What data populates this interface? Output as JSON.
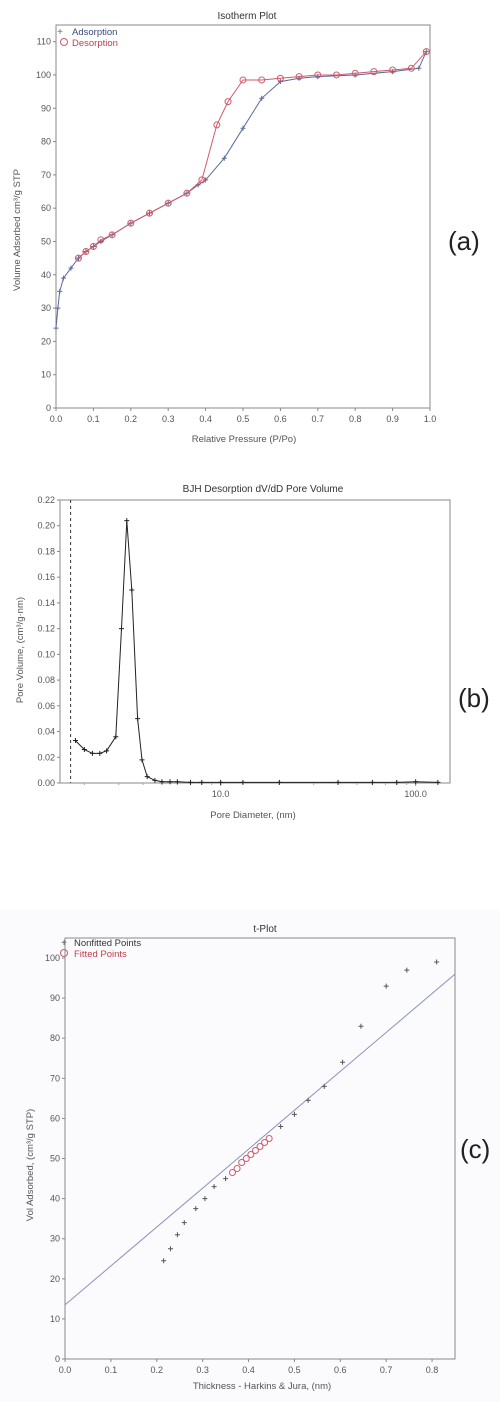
{
  "panel_labels": [
    "(a)",
    "(b)",
    "(c)"
  ],
  "chart_data": [
    {
      "type": "line",
      "title": "Isotherm Plot",
      "xlabel": "Relative Pressure (P/Po)",
      "ylabel": "Volume Adsorbed cm³/g STP",
      "xlim": [
        0,
        1.0
      ],
      "ylim": [
        0,
        115
      ],
      "xticks": [
        "0.0",
        "0.1",
        "0.2",
        "0.3",
        "0.4",
        "0.5",
        "0.6",
        "0.7",
        "0.8",
        "0.9",
        "1.0"
      ],
      "yticks": [
        "0",
        "10",
        "20",
        "30",
        "40",
        "50",
        "60",
        "70",
        "80",
        "90",
        "100",
        "110"
      ],
      "legend_position": "top-left",
      "grid": false,
      "series": [
        {
          "name": "Adsorption",
          "color": "#5a6a9a",
          "marker": "plus",
          "x": [
            0.0,
            0.005,
            0.01,
            0.02,
            0.04,
            0.06,
            0.08,
            0.1,
            0.12,
            0.15,
            0.2,
            0.25,
            0.3,
            0.35,
            0.38,
            0.4,
            0.45,
            0.5,
            0.55,
            0.6,
            0.65,
            0.7,
            0.8,
            0.9,
            0.97,
            0.99
          ],
          "y": [
            24,
            30,
            35,
            39,
            42,
            45,
            47,
            48.5,
            50,
            52,
            55.5,
            58.5,
            61.5,
            64.5,
            67,
            68.5,
            75,
            84,
            93,
            98,
            99,
            99.5,
            100,
            101,
            102,
            107
          ]
        },
        {
          "name": "Desorption",
          "color": "#d05a6a",
          "marker": "circle",
          "x": [
            0.99,
            0.95,
            0.9,
            0.85,
            0.8,
            0.75,
            0.7,
            0.65,
            0.6,
            0.55,
            0.5,
            0.46,
            0.43,
            0.39,
            0.35,
            0.3,
            0.25,
            0.2,
            0.15,
            0.12,
            0.1,
            0.08,
            0.06
          ],
          "y": [
            107,
            102,
            101.5,
            101,
            100.5,
            100,
            100,
            99.5,
            99,
            98.5,
            98.5,
            92,
            85,
            68.5,
            64.5,
            61.5,
            58.5,
            55.5,
            52,
            50.5,
            48.5,
            47,
            45
          ]
        }
      ]
    },
    {
      "type": "line",
      "title": "BJH Desorption dV/dD Pore Volume",
      "xlabel": "Pore Diameter, (nm)",
      "ylabel": "Pore Volume, (cm³/g·nm)",
      "x_scale": "log",
      "xlim": [
        1.5,
        150
      ],
      "ylim": [
        0,
        0.22
      ],
      "xticks": [
        "10.0",
        "100.0"
      ],
      "yticks": [
        "0.00",
        "0.02",
        "0.04",
        "0.06",
        "0.08",
        "0.10",
        "0.12",
        "0.14",
        "0.16",
        "0.18",
        "0.20",
        "0.22"
      ],
      "grid": false,
      "reference_line_x": 1.7,
      "series": [
        {
          "color": "#222222",
          "marker": "plus",
          "x": [
            1.8,
            2.0,
            2.2,
            2.4,
            2.6,
            2.9,
            3.1,
            3.3,
            3.5,
            3.75,
            3.95,
            4.2,
            4.6,
            5.0,
            5.5,
            6.0,
            7,
            8,
            10,
            13,
            20,
            40,
            60,
            80,
            100,
            130
          ],
          "y": [
            0.033,
            0.026,
            0.023,
            0.023,
            0.025,
            0.036,
            0.12,
            0.204,
            0.15,
            0.05,
            0.018,
            0.005,
            0.002,
            0.001,
            0.001,
            0.001,
            0.0005,
            0.0005,
            0.0005,
            0.0005,
            0.0005,
            0.0005,
            0.0005,
            0.0005,
            0.001,
            0.0005
          ]
        }
      ]
    },
    {
      "type": "scatter",
      "title": "t-Plot",
      "xlabel": "Thickness - Harkins & Jura, (nm)",
      "ylabel": "Vol Adsorbed, (cm³/g STP)",
      "xlim": [
        0.0,
        0.85
      ],
      "ylim": [
        0,
        105
      ],
      "xticks": [
        "0.0",
        "0.1",
        "0.2",
        "0.3",
        "0.4",
        "0.5",
        "0.6",
        "0.7",
        "0.8"
      ],
      "yticks": [
        "0",
        "10",
        "20",
        "30",
        "40",
        "50",
        "60",
        "70",
        "80",
        "90",
        "100"
      ],
      "legend_position": "top-left",
      "grid": false,
      "fit_line": {
        "color": "#8a8fbf",
        "x": [
          0.0,
          0.85
        ],
        "y": [
          13.5,
          96
        ]
      },
      "series": [
        {
          "name": "Nonfitted Points",
          "color": "#555555",
          "marker": "plus",
          "x": [
            0.215,
            0.23,
            0.245,
            0.26,
            0.285,
            0.305,
            0.325,
            0.35,
            0.47,
            0.5,
            0.53,
            0.565,
            0.605,
            0.645,
            0.7,
            0.745,
            0.81
          ],
          "y": [
            24.5,
            27.5,
            31,
            34,
            37.5,
            40,
            43,
            45,
            58,
            61,
            64.5,
            68,
            74,
            83,
            93,
            97,
            99
          ]
        },
        {
          "name": "Fitted Points",
          "color": "#d05a6a",
          "marker": "circle",
          "x": [
            0.365,
            0.375,
            0.385,
            0.395,
            0.405,
            0.415,
            0.425,
            0.435,
            0.445
          ],
          "y": [
            46.5,
            47.5,
            49,
            50,
            51,
            52,
            53,
            54,
            55
          ]
        }
      ]
    }
  ]
}
